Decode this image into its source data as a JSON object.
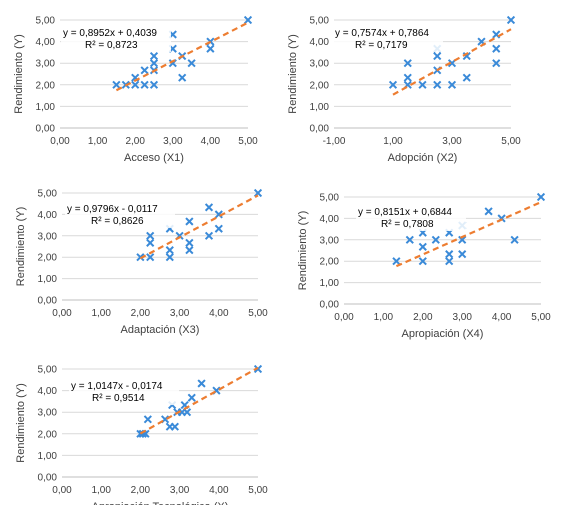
{
  "colors": {
    "points": "#3a8ad8",
    "trendline": "#ed7d31",
    "gridline": "#d9d9d9",
    "axis_text": "#404040"
  },
  "chart_data": [
    {
      "type": "scatter",
      "ylabel": "Rendimiento  (Y)",
      "xlabel": "Acceso (X1)",
      "xlim": [
        0,
        5
      ],
      "ylim": [
        0,
        5
      ],
      "xstep": 1,
      "ystep": 1,
      "xticks": [
        "0,00",
        "1,00",
        "2,00",
        "3,00",
        "4,00",
        "5,00"
      ],
      "yticks": [
        "0,00",
        "1,00",
        "2,00",
        "3,00",
        "4,00",
        "5,00"
      ],
      "grid": "horizontal",
      "equation": "y = 0,8952x + 0,4039",
      "r2": "R² = 0,8723",
      "trend": {
        "slope": 0.8952,
        "intercept": 0.4039,
        "x_from": 1.5,
        "x_to": 5.0
      },
      "points": [
        [
          1.5,
          2
        ],
        [
          1.75,
          2
        ],
        [
          2,
          2
        ],
        [
          2,
          2.33
        ],
        [
          2.25,
          2
        ],
        [
          2.25,
          2.67
        ],
        [
          2.5,
          2
        ],
        [
          2.5,
          2.67
        ],
        [
          2.5,
          3
        ],
        [
          2.5,
          3.33
        ],
        [
          3,
          3
        ],
        [
          3,
          3.67
        ],
        [
          3,
          4.33
        ],
        [
          3.25,
          2.33
        ],
        [
          3.25,
          3.33
        ],
        [
          3.5,
          3
        ],
        [
          4,
          3.67
        ],
        [
          4,
          4
        ],
        [
          5,
          5
        ]
      ]
    },
    {
      "type": "scatter",
      "ylabel": "Rendimiento  (Y)",
      "xlabel": "Adopción (X2)",
      "xlim": [
        -1,
        5
      ],
      "ylim": [
        0,
        5
      ],
      "xstep": 2,
      "ystep": 1,
      "xticks": [
        "-1,00",
        "1,00",
        "3,00",
        "5,00"
      ],
      "yticks": [
        "0,00",
        "1,00",
        "2,00",
        "3,00",
        "4,00",
        "5,00"
      ],
      "grid": "horizontal",
      "equation": "y = 0,7574x + 0,7864",
      "r2": "R² = 0,7179",
      "trend": {
        "slope": 0.7574,
        "intercept": 0.7864,
        "x_from": 1.0,
        "x_to": 5.0
      },
      "points": [
        [
          1,
          2
        ],
        [
          1.5,
          2
        ],
        [
          1.5,
          2.33
        ],
        [
          1.5,
          3
        ],
        [
          2,
          2
        ],
        [
          2.5,
          2
        ],
        [
          2.5,
          2.67
        ],
        [
          2.5,
          3.33
        ],
        [
          2.5,
          3.67
        ],
        [
          3,
          2
        ],
        [
          3,
          3
        ],
        [
          3.5,
          2.33
        ],
        [
          3.5,
          3.33
        ],
        [
          4,
          4
        ],
        [
          4.5,
          3
        ],
        [
          4.5,
          3.67
        ],
        [
          4.5,
          4.33
        ],
        [
          5,
          5
        ]
      ]
    },
    {
      "type": "scatter",
      "ylabel": "Rendimiento  (Y)",
      "xlabel": "Adaptación (X3)",
      "xlim": [
        0,
        5
      ],
      "ylim": [
        0,
        5
      ],
      "xstep": 1,
      "ystep": 1,
      "xticks": [
        "0,00",
        "1,00",
        "2,00",
        "3,00",
        "4,00",
        "5,00"
      ],
      "yticks": [
        "0,00",
        "1,00",
        "2,00",
        "3,00",
        "4,00",
        "5,00"
      ],
      "grid": "horizontal",
      "equation": "y = 0,9796x - 0,0117",
      "r2": "R² = 0,8626",
      "trend": {
        "slope": 0.9796,
        "intercept": -0.0117,
        "x_from": 2.0,
        "x_to": 5.0
      },
      "points": [
        [
          2,
          2
        ],
        [
          2.25,
          2
        ],
        [
          2.25,
          2.67
        ],
        [
          2.25,
          3
        ],
        [
          2.75,
          2
        ],
        [
          2.75,
          2.33
        ],
        [
          2.75,
          3.33
        ],
        [
          3,
          3
        ],
        [
          3.25,
          2.33
        ],
        [
          3.25,
          2.67
        ],
        [
          3.25,
          3.67
        ],
        [
          3.75,
          3
        ],
        [
          3.75,
          4.33
        ],
        [
          4,
          3.33
        ],
        [
          4,
          4
        ],
        [
          5,
          5
        ]
      ]
    },
    {
      "type": "scatter",
      "ylabel": "Rendimiento  (Y)",
      "xlabel": "Apropiación (X4)",
      "xlim": [
        0,
        5
      ],
      "ylim": [
        0,
        5
      ],
      "xstep": 1,
      "ystep": 1,
      "xticks": [
        "0,00",
        "1,00",
        "2,00",
        "3,00",
        "4,00",
        "5,00"
      ],
      "yticks": [
        "0,00",
        "1,00",
        "2,00",
        "3,00",
        "4,00",
        "5,00"
      ],
      "grid": "horizontal",
      "equation": "y = 0,8151x + 0,6844",
      "r2": "R² = 0,7808",
      "trend": {
        "slope": 0.8151,
        "intercept": 0.6844,
        "x_from": 1.33,
        "x_to": 5.0
      },
      "points": [
        [
          1.33,
          2
        ],
        [
          1.67,
          3
        ],
        [
          2,
          2
        ],
        [
          2,
          2.67
        ],
        [
          2,
          3.33
        ],
        [
          2.33,
          3
        ],
        [
          2.67,
          2
        ],
        [
          2.67,
          2.33
        ],
        [
          2.67,
          3.33
        ],
        [
          3,
          2.33
        ],
        [
          3,
          3
        ],
        [
          3,
          3.67
        ],
        [
          3.67,
          4.33
        ],
        [
          4,
          4
        ],
        [
          4.33,
          3
        ],
        [
          5,
          5
        ]
      ]
    },
    {
      "type": "scatter",
      "ylabel": "Rendimiento  (Y)",
      "xlabel": "Apropiación Tecnológica (X)",
      "xlim": [
        0,
        5
      ],
      "ylim": [
        0,
        5
      ],
      "xstep": 1,
      "ystep": 1,
      "xticks": [
        "0,00",
        "1,00",
        "2,00",
        "3,00",
        "4,00",
        "5,00"
      ],
      "yticks": [
        "0,00",
        "1,00",
        "2,00",
        "3,00",
        "4,00",
        "5,00"
      ],
      "grid": "horizontal",
      "equation": "y = 1,0147x - 0,0174",
      "r2": "R² = 0,9514",
      "trend": {
        "slope": 1.0147,
        "intercept": -0.0174,
        "x_from": 2.0,
        "x_to": 5.0
      },
      "points": [
        [
          2,
          2
        ],
        [
          2.06,
          2
        ],
        [
          2.13,
          2
        ],
        [
          2.19,
          2.67
        ],
        [
          2.63,
          2.67
        ],
        [
          2.75,
          2.33
        ],
        [
          2.81,
          3.33
        ],
        [
          2.88,
          2.33
        ],
        [
          2.94,
          3
        ],
        [
          3.06,
          3
        ],
        [
          3.13,
          3.33
        ],
        [
          3.19,
          3
        ],
        [
          3.31,
          3.67
        ],
        [
          3.56,
          4.33
        ],
        [
          3.94,
          4
        ],
        [
          5,
          5
        ]
      ]
    }
  ]
}
